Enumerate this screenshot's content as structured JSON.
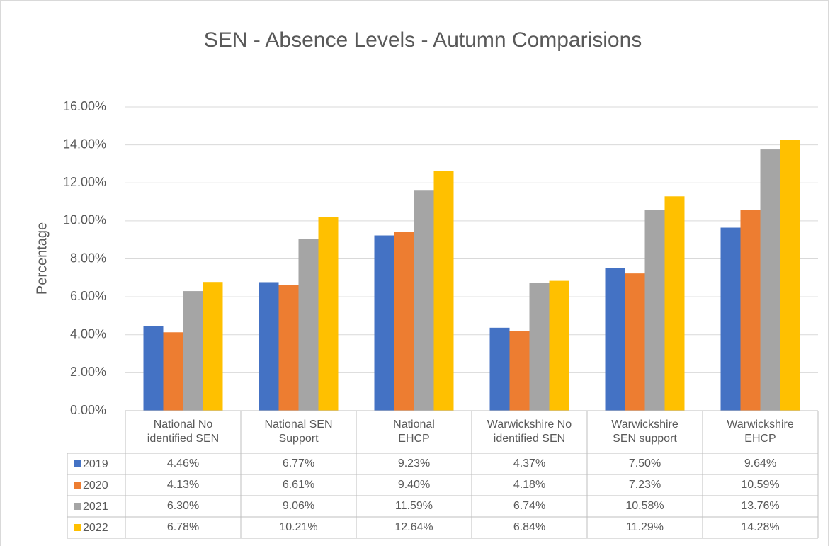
{
  "chart_data": {
    "type": "bar",
    "title": "SEN - Absence Levels - Autumn Comparisions",
    "y_label": "Percentage",
    "categories": [
      "National No\nidentified SEN",
      "National SEN\nSupport",
      "National\nEHCP",
      "Warwickshire No\nidentified SEN",
      "Warwickshire\nSEN support",
      "Warwickshire\nEHCP"
    ],
    "series": [
      {
        "name": "2019",
        "color": "#4472c4",
        "values": [
          4.46,
          6.77,
          9.23,
          4.37,
          7.5,
          9.64
        ],
        "value_labels": [
          "4.46%",
          "6.77%",
          "9.23%",
          "4.37%",
          "7.50%",
          "9.64%"
        ]
      },
      {
        "name": "2020",
        "color": "#ed7d31",
        "values": [
          4.13,
          6.61,
          9.4,
          4.18,
          7.23,
          10.59
        ],
        "value_labels": [
          "4.13%",
          "6.61%",
          "9.40%",
          "4.18%",
          "7.23%",
          "10.59%"
        ]
      },
      {
        "name": "2021",
        "color": "#a5a5a5",
        "values": [
          6.3,
          9.06,
          11.59,
          6.74,
          10.58,
          13.76
        ],
        "value_labels": [
          "6.30%",
          "9.06%",
          "11.59%",
          "6.74%",
          "10.58%",
          "13.76%"
        ]
      },
      {
        "name": "2022",
        "color": "#ffc000",
        "values": [
          6.78,
          10.21,
          12.64,
          6.84,
          11.29,
          14.28
        ],
        "value_labels": [
          "6.78%",
          "10.21%",
          "12.64%",
          "6.84%",
          "11.29%",
          "14.28%"
        ]
      }
    ],
    "ylim": [
      0,
      16
    ],
    "yticks": [
      {
        "value": 0,
        "label": "0.00%"
      },
      {
        "value": 2,
        "label": "2.00%"
      },
      {
        "value": 4,
        "label": "4.00%"
      },
      {
        "value": 6,
        "label": "6.00%"
      },
      {
        "value": 8,
        "label": "8.00%"
      },
      {
        "value": 10,
        "label": "10.00%"
      },
      {
        "value": 12,
        "label": "12.00%"
      },
      {
        "value": 14,
        "label": "14.00%"
      },
      {
        "value": 16,
        "label": "16.00%"
      }
    ],
    "grid": true
  }
}
